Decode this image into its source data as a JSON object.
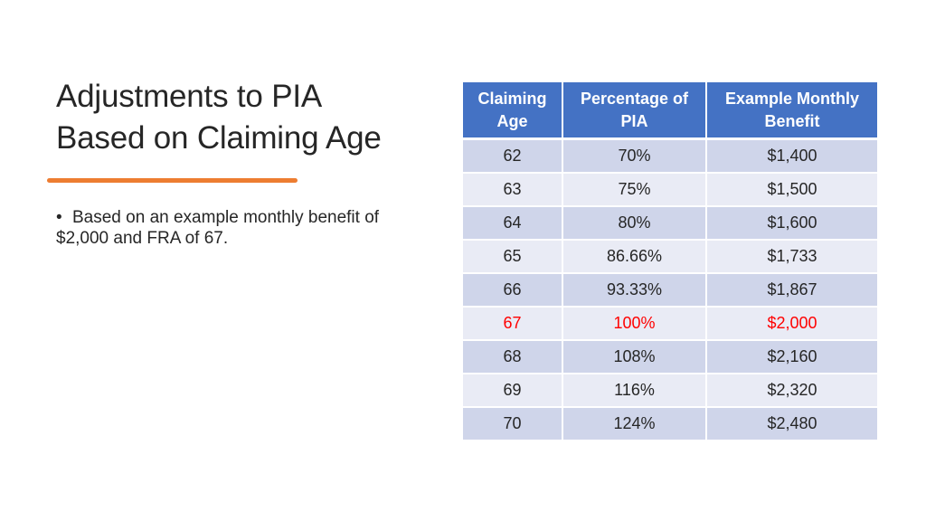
{
  "slide": {
    "title_line1": "Adjustments to PIA",
    "title_line2": "Based on Claiming Age",
    "bullet": "Based on an example monthly benefit of $2,000 and FRA of 67.",
    "bullet_symbol": "•",
    "accent_color": "#ed7d31"
  },
  "table": {
    "headers": [
      "Claiming Age",
      "Percentage of PIA",
      "Example Monthly Benefit"
    ],
    "header_color": "#4472c4",
    "highlight_color": "#ff0000",
    "highlight_age": "67",
    "rows": [
      [
        "62",
        "70%",
        "$1,400"
      ],
      [
        "63",
        "75%",
        "$1,500"
      ],
      [
        "64",
        "80%",
        "$1,600"
      ],
      [
        "65",
        "86.66%",
        "$1,733"
      ],
      [
        "66",
        "93.33%",
        "$1,867"
      ],
      [
        "67",
        "100%",
        "$2,000"
      ],
      [
        "68",
        "108%",
        "$2,160"
      ],
      [
        "69",
        "116%",
        "$2,320"
      ],
      [
        "70",
        "124%",
        "$2,480"
      ]
    ]
  }
}
